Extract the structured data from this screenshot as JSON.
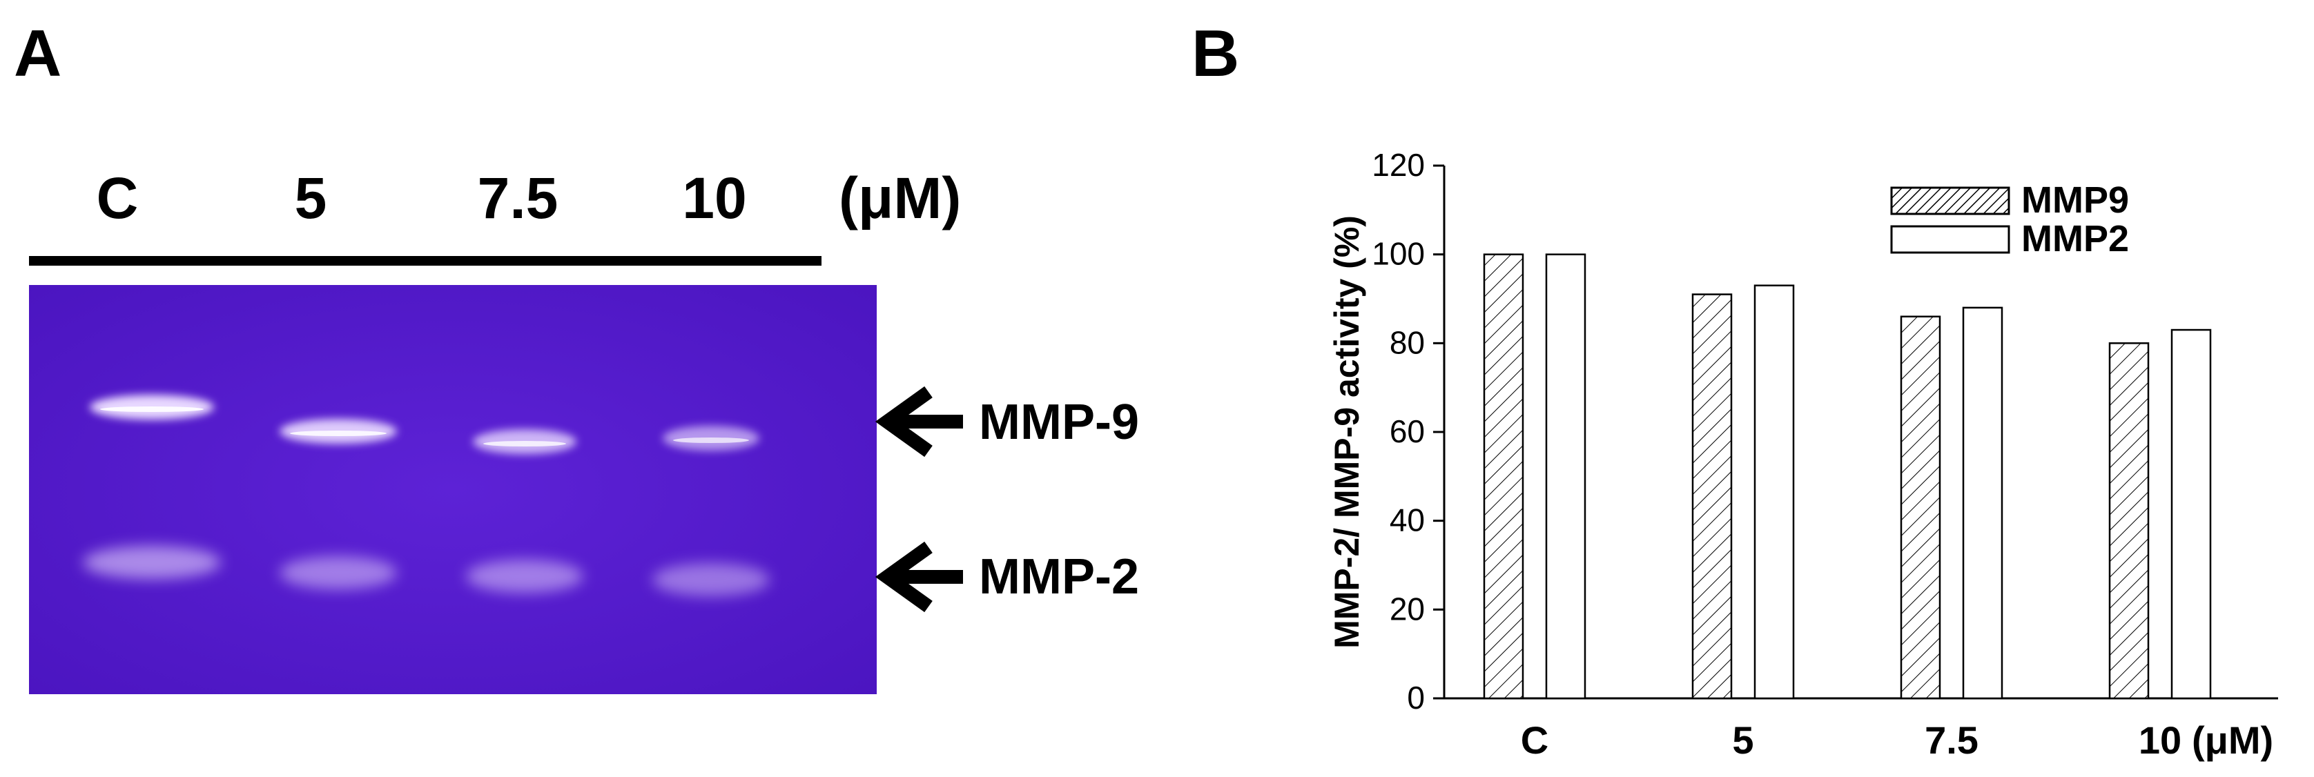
{
  "panel_a": {
    "panel_label": "A",
    "lanes": [
      "C",
      "5",
      "7.5",
      "10"
    ],
    "unit": "(μM)",
    "bands": [
      {
        "label": "MMP-9"
      },
      {
        "label": "MMP-2"
      }
    ],
    "gel_color": "#5a1fd1",
    "band_intensity": {
      "MMP-9": [
        1.0,
        0.9,
        0.75,
        0.55
      ],
      "MMP-2": [
        0.45,
        0.35,
        0.35,
        0.3
      ]
    }
  },
  "panel_b": {
    "panel_label": "B"
  },
  "chart_data": {
    "type": "bar",
    "categories": [
      "C",
      "5",
      "7.5",
      "10"
    ],
    "x_unit": "(μM)",
    "ylabel": "MMP-2/ MMP-9 activity (%)",
    "xlabel": "",
    "title": "",
    "ylim": [
      0,
      120
    ],
    "yticks": [
      0,
      20,
      40,
      60,
      80,
      100,
      120
    ],
    "grid": false,
    "legend_position": "top-right",
    "series": [
      {
        "name": "MMP9",
        "values": [
          100,
          91,
          86,
          80
        ],
        "fill": "hatched"
      },
      {
        "name": "MMP2",
        "values": [
          100,
          93,
          88,
          83
        ],
        "fill": "white"
      }
    ]
  }
}
